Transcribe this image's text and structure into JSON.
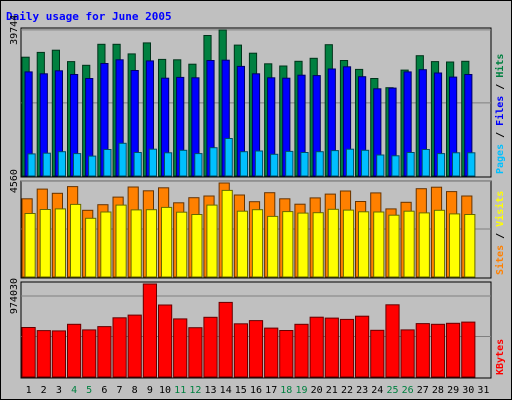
{
  "chart_data": {
    "type": "bar",
    "title": "Daily usage for June 2005",
    "categories": [
      "1",
      "2",
      "3",
      "4",
      "5",
      "6",
      "7",
      "8",
      "9",
      "10",
      "11",
      "12",
      "13",
      "14",
      "15",
      "16",
      "17",
      "18",
      "19",
      "20",
      "21",
      "22",
      "23",
      "24",
      "25",
      "26",
      "27",
      "28",
      "29",
      "30",
      "31"
    ],
    "weekend_days": [
      "4",
      "5",
      "11",
      "12",
      "18",
      "19",
      "25",
      "26"
    ],
    "panels": [
      {
        "tick_label": "39744",
        "tick_value": 39744,
        "right_labels": [
          "Pages",
          "Files",
          "Hits"
        ],
        "series": [
          {
            "name": "Hits",
            "color": "#008040",
            "values": [
              32300,
              33600,
              34200,
              31100,
              30100,
              35800,
              35800,
              33200,
              36200,
              31700,
              31600,
              30400,
              38200,
              39700,
              35600,
              33400,
              30500,
              29900,
              31200,
              32000,
              35700,
              31400,
              29000,
              26500,
              24000,
              28800,
              32700,
              31100,
              31000,
              31200,
              0
            ]
          },
          {
            "name": "Files",
            "color": "#0000ff",
            "values": [
              28300,
              27800,
              28600,
              27600,
              26500,
              30600,
              31600,
              28700,
              31300,
              26600,
              26800,
              26700,
              31400,
              31500,
              29800,
              27800,
              26700,
              26600,
              27400,
              27300,
              29100,
              29700,
              27000,
              23700,
              23900,
              28300,
              28900,
              28000,
              26900,
              27600,
              0
            ]
          },
          {
            "name": "Pages",
            "color": "#00c0ff",
            "values": [
              6000,
              6200,
              6600,
              6100,
              5400,
              7200,
              8900,
              6400,
              7300,
              6300,
              7000,
              6100,
              7700,
              10200,
              6600,
              6800,
              5900,
              6700,
              6400,
              6600,
              6900,
              7300,
              7000,
              5700,
              5500,
              6400,
              7200,
              6100,
              6300,
              6300,
              0
            ]
          }
        ]
      },
      {
        "tick_label": "4560",
        "tick_value": 4560,
        "right_labels": [
          "Sites",
          "Visits"
        ],
        "series": [
          {
            "name": "Visits",
            "color": "#ff8000",
            "values": [
              3720,
              4180,
              3980,
              4300,
              3170,
              3440,
              3800,
              4280,
              4100,
              4240,
              3530,
              3770,
              3850,
              4470,
              3900,
              3580,
              4010,
              3720,
              3460,
              3760,
              3940,
              4090,
              3590,
              4000,
              3240,
              3550,
              4200,
              4270,
              4060,
              3850,
              0
            ]
          },
          {
            "name": "Sites",
            "color": "#ffff00",
            "values": [
              3020,
              3210,
              3240,
              3450,
              2790,
              3090,
              3420,
              3190,
              3200,
              3310,
              3080,
              2970,
              3420,
              4120,
              3130,
              3200,
              2880,
              3110,
              3040,
              3060,
              3220,
              3180,
              3100,
              3090,
              2940,
              3130,
              3050,
              3170,
              3000,
              2970,
              0
            ]
          }
        ]
      },
      {
        "tick_label": "974030",
        "tick_value": 974030,
        "right_labels": [
          "KBytes"
        ],
        "series": [
          {
            "name": "KBytes",
            "color": "#ff0000",
            "values": [
              595000,
              558000,
              555000,
              634000,
              567000,
              606000,
              712000,
              745000,
              1119000,
              866000,
              699000,
              593000,
              718000,
              898000,
              640000,
              679000,
              588000,
              560000,
              634000,
              719000,
              709000,
              693000,
              731000,
              562000,
              869000,
              567000,
              642000,
              634000,
              646000,
              660000,
              0
            ]
          }
        ]
      }
    ]
  }
}
